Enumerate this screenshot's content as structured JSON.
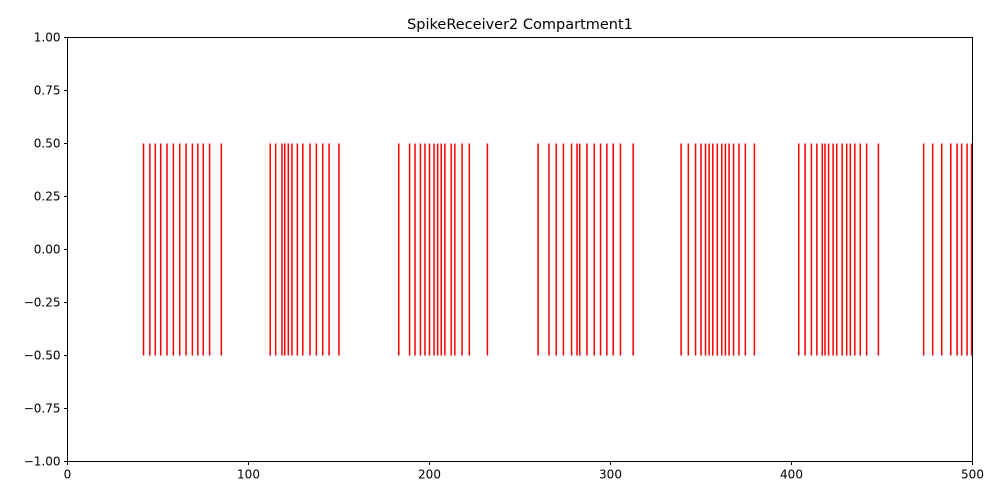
{
  "chart_data": {
    "type": "eventplot",
    "title": "SpikeReceiver2 Compartment1",
    "xlabel": "",
    "ylabel": "",
    "xlim": [
      0,
      500
    ],
    "ylim": [
      -1.0,
      1.0
    ],
    "x_ticks": [
      0,
      100,
      200,
      300,
      400,
      500
    ],
    "x_tick_labels": [
      "0",
      "100",
      "200",
      "300",
      "400",
      "500"
    ],
    "y_ticks": [
      -1.0,
      -0.75,
      -0.5,
      -0.25,
      0.0,
      0.25,
      0.5,
      0.75,
      1.0
    ],
    "y_tick_labels": [
      "−1.00",
      "−0.75",
      "−0.50",
      "−0.25",
      "0.00",
      "0.25",
      "0.50",
      "0.75",
      "1.00"
    ],
    "grid": false,
    "line_color": "#ff0000",
    "event_lineoffset": 0.0,
    "event_linelength": 1.0,
    "events": [
      42,
      45.5,
      48.5,
      51.5,
      55,
      58.5,
      62,
      65.5,
      69,
      72,
      75,
      78.5,
      85,
      112,
      115,
      118.5,
      120,
      122,
      124,
      127,
      130,
      134,
      137.5,
      141,
      144.5,
      150,
      183,
      189,
      192,
      195,
      197.5,
      200,
      202.5,
      204.5,
      206.5,
      208.5,
      212,
      214,
      218,
      222,
      232,
      260,
      266,
      270,
      274,
      278.5,
      281.5,
      283,
      287,
      291,
      294.5,
      298,
      301.5,
      305.5,
      312.5,
      339,
      343,
      347,
      350,
      352.5,
      354.5,
      356.5,
      359,
      361.5,
      363.5,
      365.5,
      368,
      371,
      374.5,
      379.5,
      404,
      407.5,
      411,
      414,
      417,
      418.5,
      420.5,
      423,
      425,
      428,
      430.5,
      432.5,
      435,
      438,
      441.5,
      448,
      473,
      478,
      483,
      488,
      491.5,
      494,
      497,
      499.5
    ]
  }
}
